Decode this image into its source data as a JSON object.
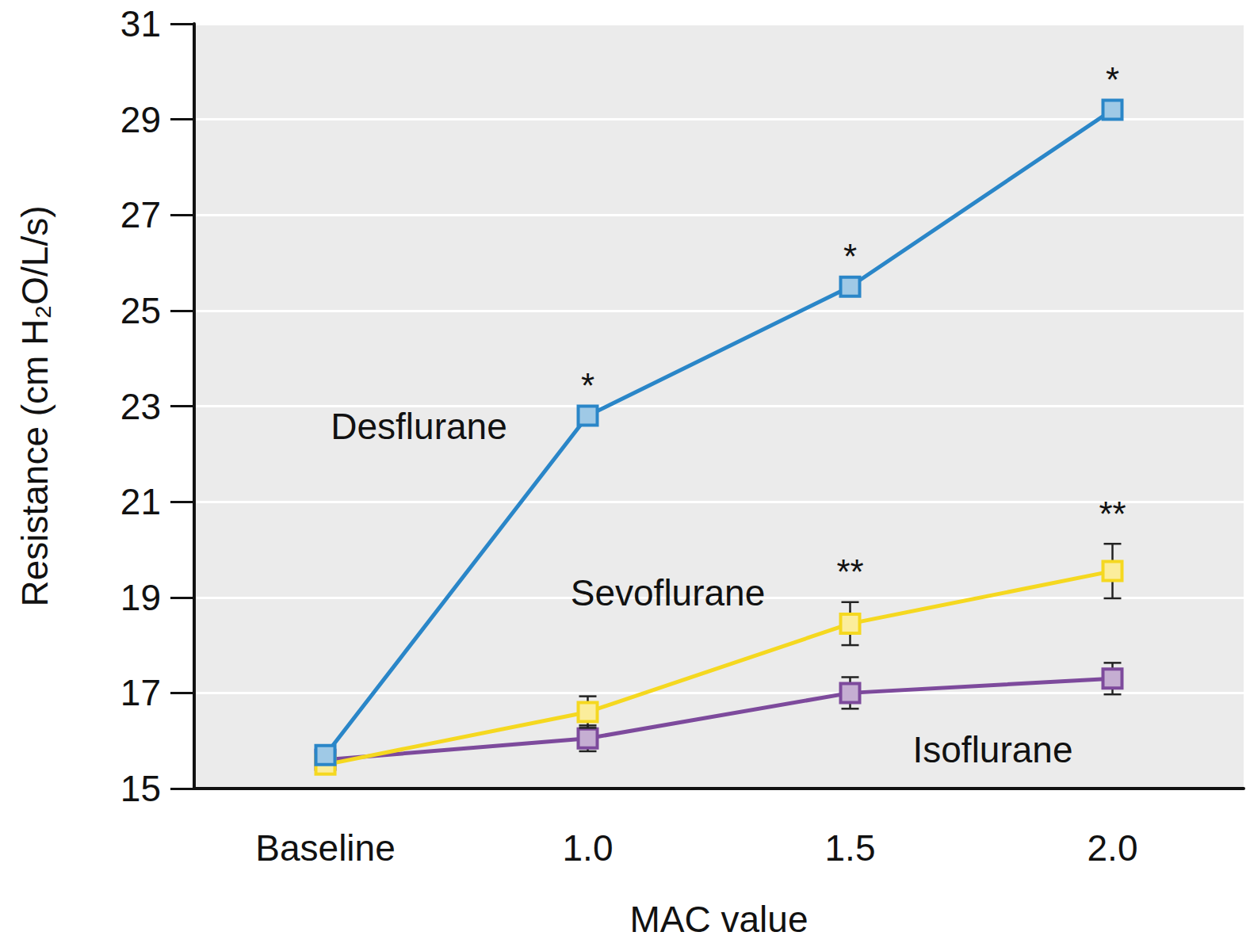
{
  "chart_data": {
    "type": "line",
    "x_label": "MAC value",
    "y_label": "Resistance (cm H₂O/L/s)",
    "categories": [
      "Baseline",
      "1.0",
      "1.5",
      "2.0"
    ],
    "ylim": [
      15,
      31
    ],
    "yticks": [
      15,
      17,
      19,
      21,
      23,
      25,
      27,
      29,
      31
    ],
    "grid": true,
    "marker": "square",
    "series": [
      {
        "name": "Desflurane",
        "color": "#2a86c8",
        "values": [
          15.7,
          22.8,
          25.5,
          29.2
        ]
      },
      {
        "name": "Sevoflurane",
        "color": "#f5d820",
        "values": [
          15.5,
          16.6,
          18.45,
          19.55
        ],
        "errors": [
          null,
          0.33,
          0.45,
          0.57
        ]
      },
      {
        "name": "Isoflurane",
        "color": "#7d4a9c",
        "values": [
          15.6,
          16.05,
          17.0,
          17.3
        ],
        "errors": [
          null,
          0.27,
          0.33,
          0.33
        ]
      }
    ],
    "annotations": [
      {
        "series": "Desflurane",
        "category": "1.0",
        "text": "*"
      },
      {
        "series": "Desflurane",
        "category": "1.5",
        "text": "*"
      },
      {
        "series": "Desflurane",
        "category": "2.0",
        "text": "*"
      },
      {
        "series": "Sevoflurane",
        "category": "1.5",
        "text": "**"
      },
      {
        "series": "Sevoflurane",
        "category": "2.0",
        "text": "**"
      }
    ]
  }
}
